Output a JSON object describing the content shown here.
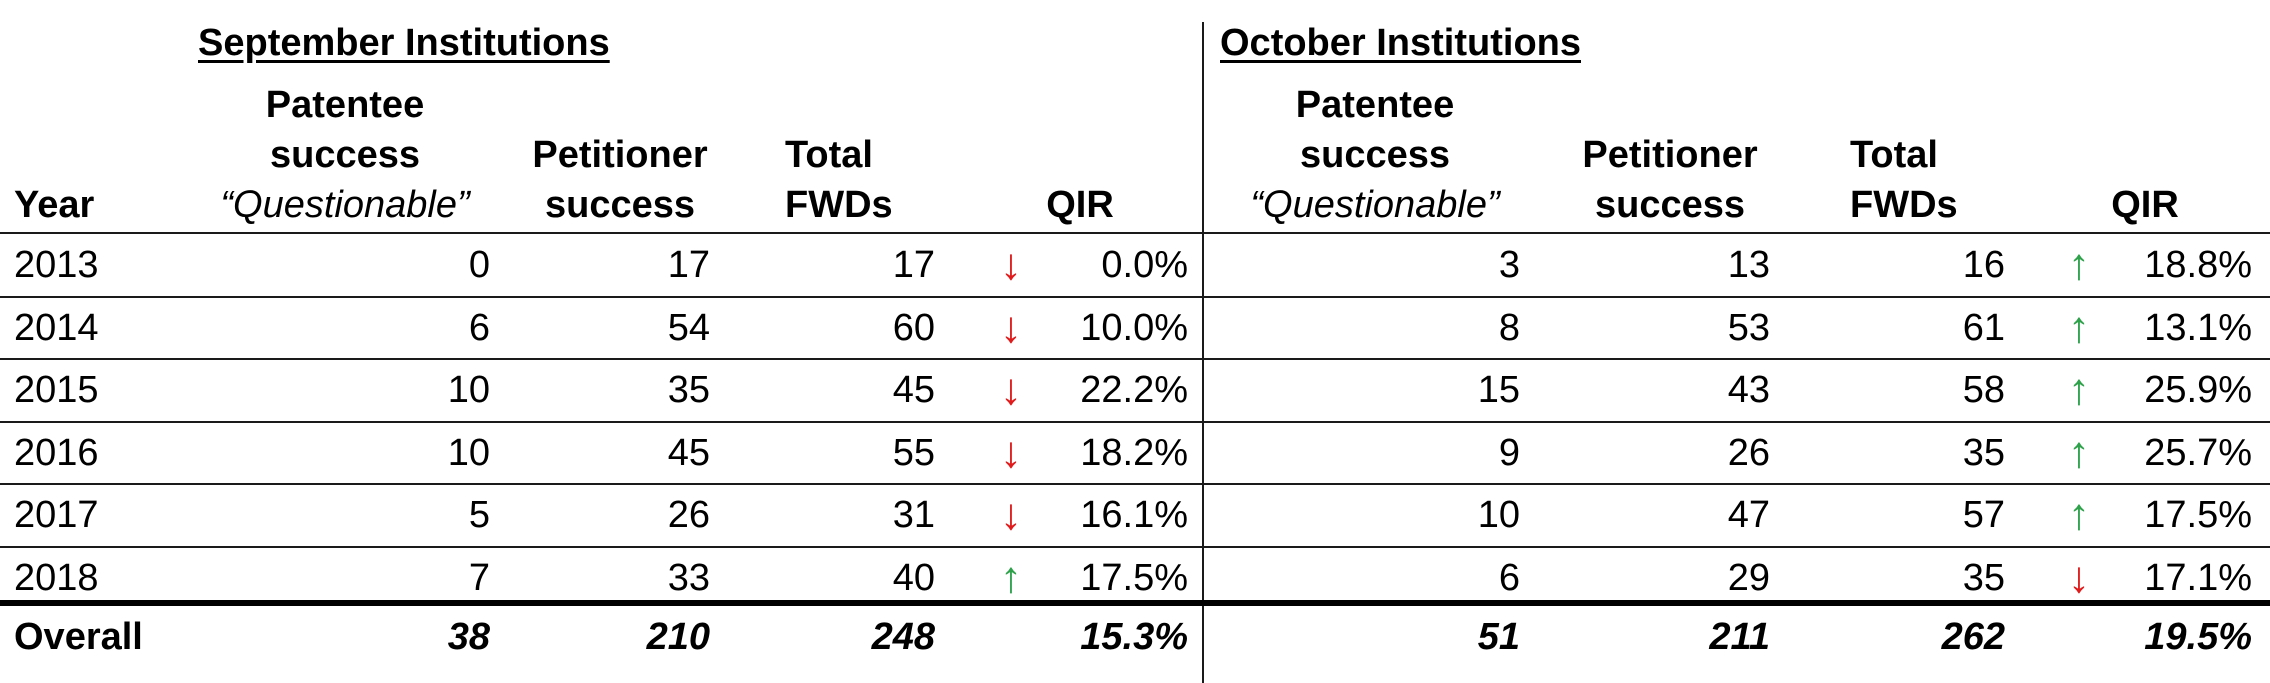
{
  "september": {
    "title": "September Institutions",
    "header": {
      "year": "Year",
      "patentee_line1": "Patentee",
      "patentee_line2": "success",
      "patentee_line3": "“Questionable”",
      "petitioner_line1": "Petitioner",
      "petitioner_line2": "success",
      "total_line1": "Total",
      "total_line2": "FWDs",
      "qir": "QIR"
    },
    "rows": [
      {
        "year": "2013",
        "patentee": "0",
        "petitioner": "17",
        "total": "17",
        "arrow": "↓",
        "qir": "0.0%"
      },
      {
        "year": "2014",
        "patentee": "6",
        "petitioner": "54",
        "total": "60",
        "arrow": "↓",
        "qir": "10.0%"
      },
      {
        "year": "2015",
        "patentee": "10",
        "petitioner": "35",
        "total": "45",
        "arrow": "↓",
        "qir": "22.2%"
      },
      {
        "year": "2016",
        "patentee": "10",
        "petitioner": "45",
        "total": "55",
        "arrow": "↓",
        "qir": "18.2%"
      },
      {
        "year": "2017",
        "patentee": "5",
        "petitioner": "26",
        "total": "31",
        "arrow": "↓",
        "qir": "16.1%"
      },
      {
        "year": "2018",
        "patentee": "7",
        "petitioner": "33",
        "total": "40",
        "arrow": "↑",
        "qir": "17.5%"
      }
    ],
    "overall": {
      "label": "Overall",
      "patentee": "38",
      "petitioner": "210",
      "total": "248",
      "qir": "15.3%"
    }
  },
  "october": {
    "title": "October Institutions",
    "header": {
      "patentee_line1": "Patentee",
      "patentee_line2": "success",
      "patentee_line3": "“Questionable”",
      "petitioner_line1": "Petitioner",
      "petitioner_line2": "success",
      "total_line1": "Total",
      "total_line2": "FWDs",
      "qir": "QIR"
    },
    "rows": [
      {
        "patentee": "3",
        "petitioner": "13",
        "total": "16",
        "arrow": "↑",
        "qir": "18.8%"
      },
      {
        "patentee": "8",
        "petitioner": "53",
        "total": "61",
        "arrow": "↑",
        "qir": "13.1%"
      },
      {
        "patentee": "15",
        "petitioner": "43",
        "total": "58",
        "arrow": "↑",
        "qir": "25.9%"
      },
      {
        "patentee": "9",
        "petitioner": "26",
        "total": "35",
        "arrow": "↑",
        "qir": "25.7%"
      },
      {
        "patentee": "10",
        "petitioner": "47",
        "total": "57",
        "arrow": "↑",
        "qir": "17.5%"
      },
      {
        "patentee": "6",
        "petitioner": "29",
        "total": "35",
        "arrow": "↓",
        "qir": "17.1%"
      }
    ],
    "overall": {
      "patentee": "51",
      "petitioner": "211",
      "total": "262",
      "qir": "19.5%"
    }
  },
  "colors": {
    "up_arrow": "#2ea24a",
    "down_arrow": "#e11b1b"
  }
}
